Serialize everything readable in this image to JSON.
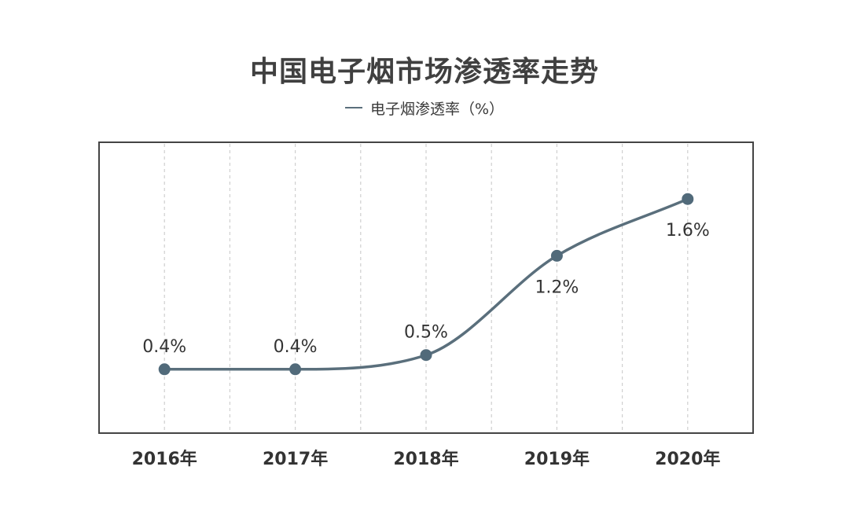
{
  "chart_data": {
    "type": "line",
    "title": "中国电子烟市场渗透率走势",
    "categories": [
      "2016年",
      "2017年",
      "2018年",
      "2019年",
      "2020年"
    ],
    "series": [
      {
        "name": "电子烟渗透率（%）",
        "values": [
          0.4,
          0.4,
          0.5,
          1.2,
          1.6
        ],
        "labels": [
          "0.4%",
          "0.4%",
          "0.5%",
          "1.2%",
          "1.6%"
        ]
      }
    ],
    "xlabel": "",
    "ylabel": "",
    "ylim": [
      -0.05,
      2.0
    ],
    "grid": "vertical dashed",
    "legend": "top-center",
    "smooth": true
  },
  "colors": {
    "line": "#5a6f7c",
    "marker": "#516a7a",
    "frame": "#444444",
    "grid": "#cfcfcf",
    "text": "#333333"
  }
}
